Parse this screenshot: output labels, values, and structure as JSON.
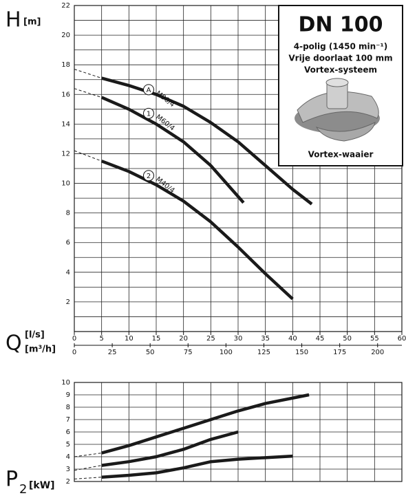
{
  "chart_data": [
    {
      "type": "line",
      "y_label": "H",
      "y_unit": "[m]",
      "x_label": "Q",
      "x_unit": "[l/s]",
      "x2_unit": "[m³/h]",
      "xlim": [
        0,
        60
      ],
      "xticks": [
        0,
        5,
        10,
        15,
        20,
        25,
        30,
        35,
        40,
        45,
        50,
        55,
        60
      ],
      "x2lim": [
        0,
        216
      ],
      "x2ticks": [
        0,
        25,
        50,
        75,
        100,
        125,
        150,
        175,
        200
      ],
      "ylim": [
        0,
        22
      ],
      "yticks": [
        2,
        4,
        6,
        8,
        10,
        12,
        14,
        16,
        18,
        20,
        22
      ],
      "y_minor_ticks": [
        1,
        3,
        5,
        7,
        9,
        11,
        13,
        15,
        17,
        19,
        21
      ],
      "grid": true,
      "color": "#1a1a1a",
      "series": [
        {
          "name": "M90/4",
          "marker": "A",
          "x": [
            5,
            10,
            15,
            20,
            25,
            30,
            35,
            40,
            43.5
          ],
          "values": [
            17.1,
            16.6,
            16.0,
            15.2,
            14.1,
            12.8,
            11.2,
            9.6,
            8.6
          ],
          "extension": {
            "x": [
              0,
              5
            ],
            "values": [
              17.7,
              17.1
            ]
          }
        },
        {
          "name": "M60/4",
          "marker": "1",
          "x": [
            5,
            10,
            15,
            20,
            25,
            31
          ],
          "values": [
            15.8,
            15.0,
            14.0,
            12.8,
            11.2,
            8.7
          ],
          "extension": {
            "x": [
              0,
              5
            ],
            "values": [
              16.4,
              15.8
            ]
          }
        },
        {
          "name": "M40/4",
          "marker": "2",
          "x": [
            5,
            10,
            15,
            20,
            25,
            30,
            35,
            40
          ],
          "values": [
            11.5,
            10.8,
            9.9,
            8.8,
            7.4,
            5.7,
            3.9,
            2.2
          ],
          "extension": {
            "x": [
              0,
              5
            ],
            "values": [
              12.2,
              11.5
            ]
          }
        }
      ]
    },
    {
      "type": "line",
      "y_label": "P",
      "y_label_sub": "2",
      "y_unit": "[kW]",
      "xlim": [
        0,
        60
      ],
      "x_grid_lines": [
        0,
        5,
        10,
        15,
        20,
        25,
        30,
        35,
        40,
        45,
        50,
        55,
        60
      ],
      "ylim": [
        2,
        10
      ],
      "yticks": [
        2,
        3,
        4,
        5,
        6,
        7,
        8,
        9,
        10
      ],
      "grid": true,
      "color": "#1a1a1a",
      "series": [
        {
          "x": [
            5,
            10,
            15,
            20,
            25,
            30,
            35,
            43
          ],
          "values": [
            4.3,
            4.9,
            5.6,
            6.3,
            7.0,
            7.7,
            8.3,
            9.0
          ],
          "extension": {
            "x": [
              0,
              5
            ],
            "values": [
              4.0,
              4.3
            ]
          }
        },
        {
          "x": [
            5,
            10,
            15,
            20,
            25,
            30
          ],
          "values": [
            3.3,
            3.6,
            4.0,
            4.6,
            5.4,
            6.0
          ],
          "extension": {
            "x": [
              0,
              5
            ],
            "values": [
              2.9,
              3.3
            ]
          }
        },
        {
          "x": [
            5,
            10,
            15,
            20,
            25,
            30,
            40
          ],
          "values": [
            2.35,
            2.5,
            2.7,
            3.1,
            3.6,
            3.8,
            4.05
          ],
          "extension": {
            "x": [
              0,
              5
            ],
            "values": [
              2.2,
              2.35
            ]
          }
        }
      ]
    }
  ],
  "info_box": {
    "title": "DN 100",
    "lines": [
      "4-polig (1450 min⁻¹)",
      "Vrije doorlaat 100 mm",
      "Vortex-systeem"
    ],
    "caption": "Vortex-waaier"
  }
}
